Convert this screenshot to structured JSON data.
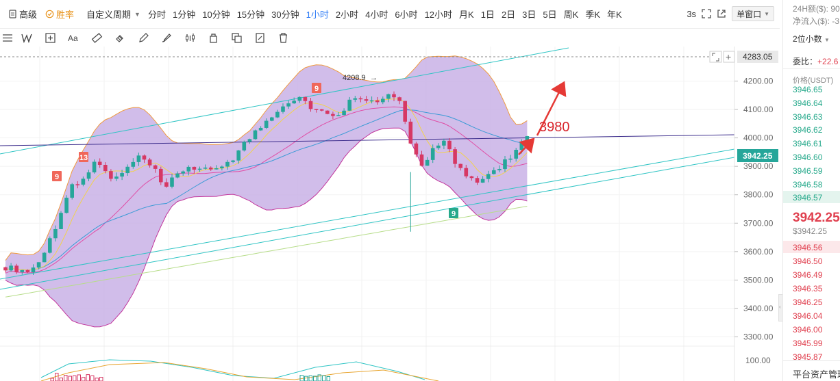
{
  "toolbar": {
    "advanced": "高级",
    "win_rate": "胜率",
    "custom_period": "自定义周期",
    "periods": [
      "分时",
      "1分钟",
      "10分钟",
      "15分钟",
      "30分钟",
      "1小时",
      "2小时",
      "4小时",
      "6小时",
      "12小时",
      "月K",
      "1日",
      "2日",
      "3日",
      "5日",
      "周K",
      "季K",
      "年K"
    ],
    "active_period": "1小时",
    "refresh": "3s",
    "window_mode": "单窗口"
  },
  "chart": {
    "price_axis": [
      "4200.00",
      "4100.00",
      "4000.00",
      "3900.00",
      "3800.00",
      "3700.00",
      "3600.00",
      "3500.00",
      "3400.00",
      "3300.00"
    ],
    "top_price_label": "4283.05",
    "current_price_label": "3942.25",
    "high_marker": "4208.9",
    "annotation": "3980",
    "td_labels": [
      "9",
      "13",
      "9",
      "9"
    ],
    "osc_axis": "100.00",
    "colors": {
      "up": "#26a69a",
      "down": "#d63864",
      "band": "#c9b2e6",
      "annotation": "#e53935"
    }
  },
  "side": {
    "vol_24h": "24H额($): 90",
    "net_inflow": "净流入($): -3,",
    "decimals": "2位小数",
    "bid_ratio_label": "委比：",
    "bid_ratio_value": "+22.6",
    "price_header": "价格(USDT)",
    "asks": [
      "3946.65",
      "3946.64",
      "3946.63",
      "3946.62",
      "3946.61",
      "3946.60",
      "3946.59",
      "3946.58",
      "3946.57"
    ],
    "last_price": "3942.25",
    "last_price_usd": "$3942.25",
    "bids": [
      "3946.56",
      "3946.50",
      "3946.49",
      "3946.35",
      "3946.25",
      "3946.04",
      "3946.00",
      "3945.99",
      "3945.87"
    ],
    "footer": "平台资产管理"
  }
}
